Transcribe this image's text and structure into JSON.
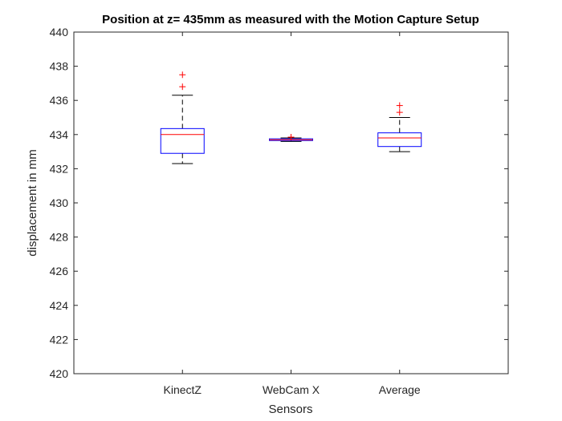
{
  "chart_data": {
    "type": "boxplot",
    "title": "Position at z= 435mm as measured with the Motion Capture Setup",
    "xlabel": "Sensors",
    "ylabel": "displacement in mm",
    "ylim": [
      420,
      440
    ],
    "yticks": [
      "420",
      "422",
      "424",
      "426",
      "428",
      "430",
      "432",
      "434",
      "436",
      "438",
      "440"
    ],
    "grid": false,
    "categories": [
      "KinectZ",
      "WebCam X",
      "Average"
    ],
    "boxes": [
      {
        "name": "KinectZ",
        "whisker_low": 432.3,
        "q1": 432.9,
        "median": 434.0,
        "q3": 434.35,
        "whisker_high": 436.3,
        "outliers": [
          436.8,
          437.5
        ]
      },
      {
        "name": "WebCam X",
        "whisker_low": 433.6,
        "q1": 433.65,
        "median": 433.7,
        "q3": 433.75,
        "whisker_high": 433.8,
        "outliers": [
          433.85
        ]
      },
      {
        "name": "Average",
        "whisker_low": 433.0,
        "q1": 433.3,
        "median": 433.8,
        "q3": 434.1,
        "whisker_high": 435.0,
        "outliers": [
          435.3,
          435.7
        ]
      }
    ],
    "colors": {
      "box": "#0000ff",
      "median": "#ff0000",
      "whisker": "#000000",
      "outlier": "#ff0000",
      "axis": "#262626"
    }
  }
}
